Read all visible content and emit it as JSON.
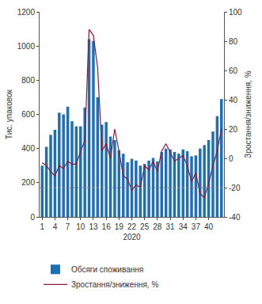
{
  "chart_data": {
    "type": "bar",
    "categories": [
      1,
      null,
      null,
      4,
      null,
      null,
      7,
      null,
      null,
      10,
      null,
      null,
      13,
      null,
      null,
      16,
      null,
      null,
      19,
      null,
      null,
      22,
      null,
      null,
      25,
      null,
      null,
      28,
      null,
      null,
      31,
      null,
      null,
      34,
      null,
      null,
      37,
      null,
      null,
      40,
      null,
      null,
      null
    ],
    "x_label": "2020",
    "y_label": "Тис. упаковок",
    "y2_label": "Зростання/зниження, %",
    "series": [
      {
        "name": "Обсяги споживання",
        "type": "bar",
        "color": "#1f6fb5",
        "values": [
          300,
          410,
          480,
          510,
          610,
          600,
          645,
          560,
          530,
          530,
          640,
          1040,
          1030,
          700,
          540,
          555,
          470,
          450,
          390,
          370,
          320,
          340,
          330,
          300,
          310,
          330,
          345,
          325,
          380,
          400,
          395,
          380,
          370,
          395,
          385,
          355,
          360,
          400,
          420,
          450,
          500,
          590,
          690
        ]
      },
      {
        "name": "Зростання/зниження, %",
        "type": "line",
        "axis": "y2",
        "color": "#8b1a3a",
        "values": [
          -3,
          -5,
          -9,
          -12,
          -5,
          -7,
          -2,
          -4,
          -4,
          5,
          12,
          88,
          84,
          62,
          5,
          10,
          0,
          20,
          5,
          -12,
          -14,
          -22,
          -18,
          -20,
          -5,
          -8,
          -2,
          -9,
          5,
          10,
          4,
          -2,
          0,
          2,
          -5,
          -16,
          -10,
          -24,
          -27,
          -17,
          -5,
          5,
          20
        ]
      }
    ],
    "ylim": [
      0,
      1200
    ],
    "yticks": [
      0,
      200,
      400,
      600,
      800,
      1000,
      1200
    ],
    "y2lim": [
      -40,
      100
    ],
    "y2ticks": [
      -40,
      -20,
      0,
      20,
      40,
      60,
      80,
      100
    ],
    "reference_line": {
      "axis": "y2",
      "value": -20,
      "line_style": "dot"
    },
    "legend": "bottom",
    "grid": false
  }
}
